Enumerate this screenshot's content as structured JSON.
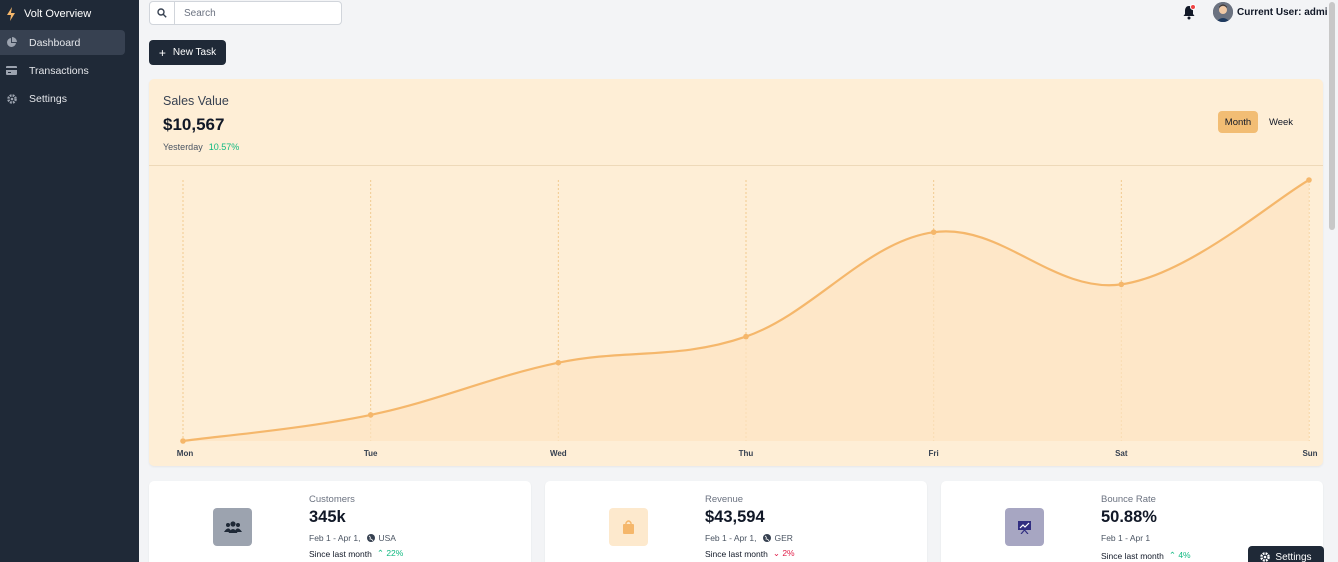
{
  "sidebar": {
    "brand": "Volt Overview",
    "items": [
      {
        "label": "Dashboard",
        "icon": "pie-chart-icon",
        "active": true
      },
      {
        "label": "Transactions",
        "icon": "credit-card-icon",
        "active": false
      },
      {
        "label": "Settings",
        "icon": "gear-icon",
        "active": false
      }
    ]
  },
  "header": {
    "search_placeholder": "Search",
    "user_label": "Current User: admin"
  },
  "actions": {
    "new_task": "New Task"
  },
  "sales": {
    "title": "Sales Value",
    "amount": "$10,567",
    "yesterday_label": "Yesterday",
    "yesterday_pct": "10.57%",
    "toggle_month": "Month",
    "toggle_week": "Week"
  },
  "chart_data": {
    "type": "area",
    "categories": [
      "Mon",
      "Tue",
      "Wed",
      "Thu",
      "Fri",
      "Sat",
      "Sun"
    ],
    "values": [
      0,
      10,
      30,
      40,
      80,
      60,
      100
    ],
    "ylim": [
      0,
      100
    ],
    "grid": "vertical-dotted",
    "colors": {
      "line": "#f5b76b",
      "fill": "#fde4c2"
    }
  },
  "stats": [
    {
      "label": "Customers",
      "value": "345k",
      "range": "Feb 1 - Apr 1,",
      "region": "USA",
      "since_label": "Since last month",
      "change": "22%",
      "direction": "up",
      "icon": "users-icon",
      "icon_bg": "#9ca3af",
      "show_globe": true
    },
    {
      "label": "Revenue",
      "value": "$43,594",
      "range": "Feb 1 - Apr 1,",
      "region": "GER",
      "since_label": "Since last month",
      "change": "2%",
      "direction": "down",
      "icon": "shopping-bag-icon",
      "icon_bg": "#fde9cd",
      "show_globe": true
    },
    {
      "label": "Bounce Rate",
      "value": "50.88%",
      "range": "Feb 1 - Apr 1",
      "region": "",
      "since_label": "Since last month",
      "change": "4%",
      "direction": "up",
      "icon": "presentation-chart-icon",
      "icon_bg": "#a7a6c2",
      "show_globe": false
    }
  ],
  "floating": {
    "settings_label": "Settings"
  }
}
